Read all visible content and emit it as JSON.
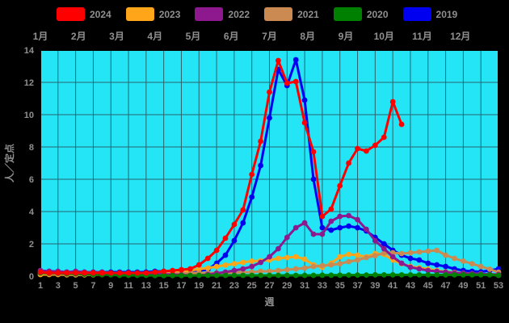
{
  "figure": {
    "background": "#000000",
    "plot_background": "#23E5F5",
    "grid_color": "#2A646E",
    "frame_color": "#000000",
    "text_color": "#909090"
  },
  "legend": {
    "items": [
      {
        "label": "2024",
        "color": "#FF0000"
      },
      {
        "label": "2023",
        "color": "#FFA519"
      },
      {
        "label": "2022",
        "color": "#8E198F"
      },
      {
        "label": "2021",
        "color": "#CB8A52"
      },
      {
        "label": "2020",
        "color": "#008000"
      },
      {
        "label": "2019",
        "color": "#0000F0"
      }
    ]
  },
  "chart_data": {
    "type": "line",
    "title": "",
    "xlabel": "週",
    "ylabel": "人／定点",
    "ylim": [
      0,
      14
    ],
    "yticks": [
      0,
      2,
      4,
      6,
      8,
      10,
      12,
      14
    ],
    "xticks": [
      1,
      3,
      5,
      7,
      9,
      11,
      13,
      15,
      17,
      19,
      21,
      23,
      25,
      27,
      29,
      31,
      33,
      35,
      37,
      39,
      41,
      43,
      45,
      47,
      49,
      51,
      53
    ],
    "x_start_week": 1,
    "x_end_week": 53,
    "grid": true,
    "legend_position": "top",
    "month_labels": [
      "1月",
      "2月",
      "3月",
      "4月",
      "5月",
      "6月",
      "7月",
      "8月",
      "9月",
      "10月",
      "11月",
      "12月"
    ],
    "draw_order": [
      "2019",
      "2023",
      "2021",
      "2022",
      "2020",
      "2024"
    ],
    "series": [
      {
        "name": "2024",
        "color": "#FF0000",
        "values": [
          0.25,
          0.2,
          0.2,
          0.2,
          0.2,
          0.2,
          0.2,
          0.2,
          0.2,
          0.2,
          0.2,
          0.2,
          0.2,
          0.25,
          0.3,
          0.35,
          0.4,
          0.45,
          0.7,
          1.1,
          1.6,
          2.35,
          3.2,
          4.1,
          6.3,
          8.35,
          11.4,
          13.35,
          11.95,
          12.05,
          9.5,
          7.7,
          3.7,
          4.15,
          5.6,
          7.0,
          7.9,
          7.75,
          8.1,
          8.6,
          10.8,
          9.4
        ]
      },
      {
        "name": "2023",
        "color": "#FFA519",
        "values": [
          0.1,
          0.1,
          0.1,
          0.08,
          0.08,
          0.08,
          0.08,
          0.1,
          0.1,
          0.1,
          0.1,
          0.1,
          0.12,
          0.12,
          0.15,
          0.2,
          0.25,
          0.35,
          0.43,
          0.5,
          0.6,
          0.68,
          0.77,
          0.85,
          0.93,
          0.95,
          1.0,
          1.1,
          1.15,
          1.2,
          1.05,
          0.7,
          0.55,
          0.8,
          1.2,
          1.35,
          1.3,
          1.2,
          1.4,
          1.35,
          1.0,
          0.77,
          0.6,
          0.52,
          0.43,
          0.35,
          0.27,
          0.23,
          0.18,
          0.15,
          0.14,
          0.1,
          0.07
        ]
      },
      {
        "name": "2022",
        "color": "#8E198F",
        "values": [
          0.35,
          0.3,
          0.3,
          0.25,
          0.3,
          0.25,
          0.25,
          0.25,
          0.2,
          0.2,
          0.2,
          0.15,
          0.15,
          0.15,
          0.12,
          0.1,
          0.08,
          0.05,
          0.05,
          0.1,
          0.18,
          0.25,
          0.35,
          0.45,
          0.6,
          0.85,
          1.2,
          1.7,
          2.4,
          3.0,
          3.3,
          2.6,
          2.6,
          3.4,
          3.7,
          3.75,
          3.5,
          2.9,
          2.2,
          1.7,
          1.2,
          0.8,
          0.55,
          0.45,
          0.35,
          0.3,
          0.25,
          0.2,
          0.18,
          0.15,
          0.13,
          0.12,
          0.1
        ]
      },
      {
        "name": "2021",
        "color": "#CB8A52",
        "values": [
          0.2,
          0.15,
          0.15,
          0.1,
          0.1,
          0.1,
          0.1,
          0.12,
          0.12,
          0.12,
          0.15,
          0.15,
          0.15,
          0.15,
          0.15,
          0.15,
          0.18,
          0.18,
          0.2,
          0.2,
          0.2,
          0.22,
          0.22,
          0.25,
          0.25,
          0.3,
          0.3,
          0.35,
          0.4,
          0.45,
          0.5,
          0.6,
          0.65,
          0.7,
          0.77,
          0.9,
          1.0,
          1.15,
          1.27,
          1.43,
          1.45,
          1.4,
          1.45,
          1.5,
          1.55,
          1.6,
          1.3,
          1.1,
          0.93,
          0.77,
          0.6,
          0.43,
          0.25
        ]
      },
      {
        "name": "2020",
        "color": "#008000",
        "values": [
          0.2,
          0.18,
          0.18,
          0.15,
          0.15,
          0.12,
          0.1,
          0.1,
          0.08,
          0.05,
          0.05,
          0.05,
          0.05,
          0.04,
          0.04,
          0.04,
          0.04,
          0.04,
          0.05,
          0.05,
          0.05,
          0.05,
          0.05,
          0.05,
          0.05,
          0.05,
          0.05,
          0.05,
          0.05,
          0.05,
          0.05,
          0.05,
          0.06,
          0.06,
          0.06,
          0.07,
          0.07,
          0.07,
          0.08,
          0.08,
          0.08,
          0.08,
          0.08,
          0.08,
          0.08,
          0.08,
          0.08,
          0.08,
          0.08,
          0.08,
          0.08,
          0.08,
          0.05
        ]
      },
      {
        "name": "2019",
        "color": "#0000F0",
        "values": [
          0.3,
          0.3,
          0.25,
          0.25,
          0.25,
          0.25,
          0.25,
          0.25,
          0.25,
          0.25,
          0.25,
          0.25,
          0.25,
          0.3,
          0.3,
          0.3,
          0.35,
          0.35,
          0.35,
          0.4,
          0.8,
          1.3,
          2.2,
          3.3,
          4.9,
          6.85,
          9.8,
          12.8,
          11.8,
          13.4,
          10.9,
          6.0,
          3.0,
          2.85,
          3.0,
          3.1,
          3.0,
          2.8,
          2.4,
          2.0,
          1.6,
          1.3,
          1.1,
          1.0,
          0.8,
          0.7,
          0.6,
          0.45,
          0.35,
          0.3,
          0.27,
          0.35,
          0.45
        ]
      }
    ]
  }
}
